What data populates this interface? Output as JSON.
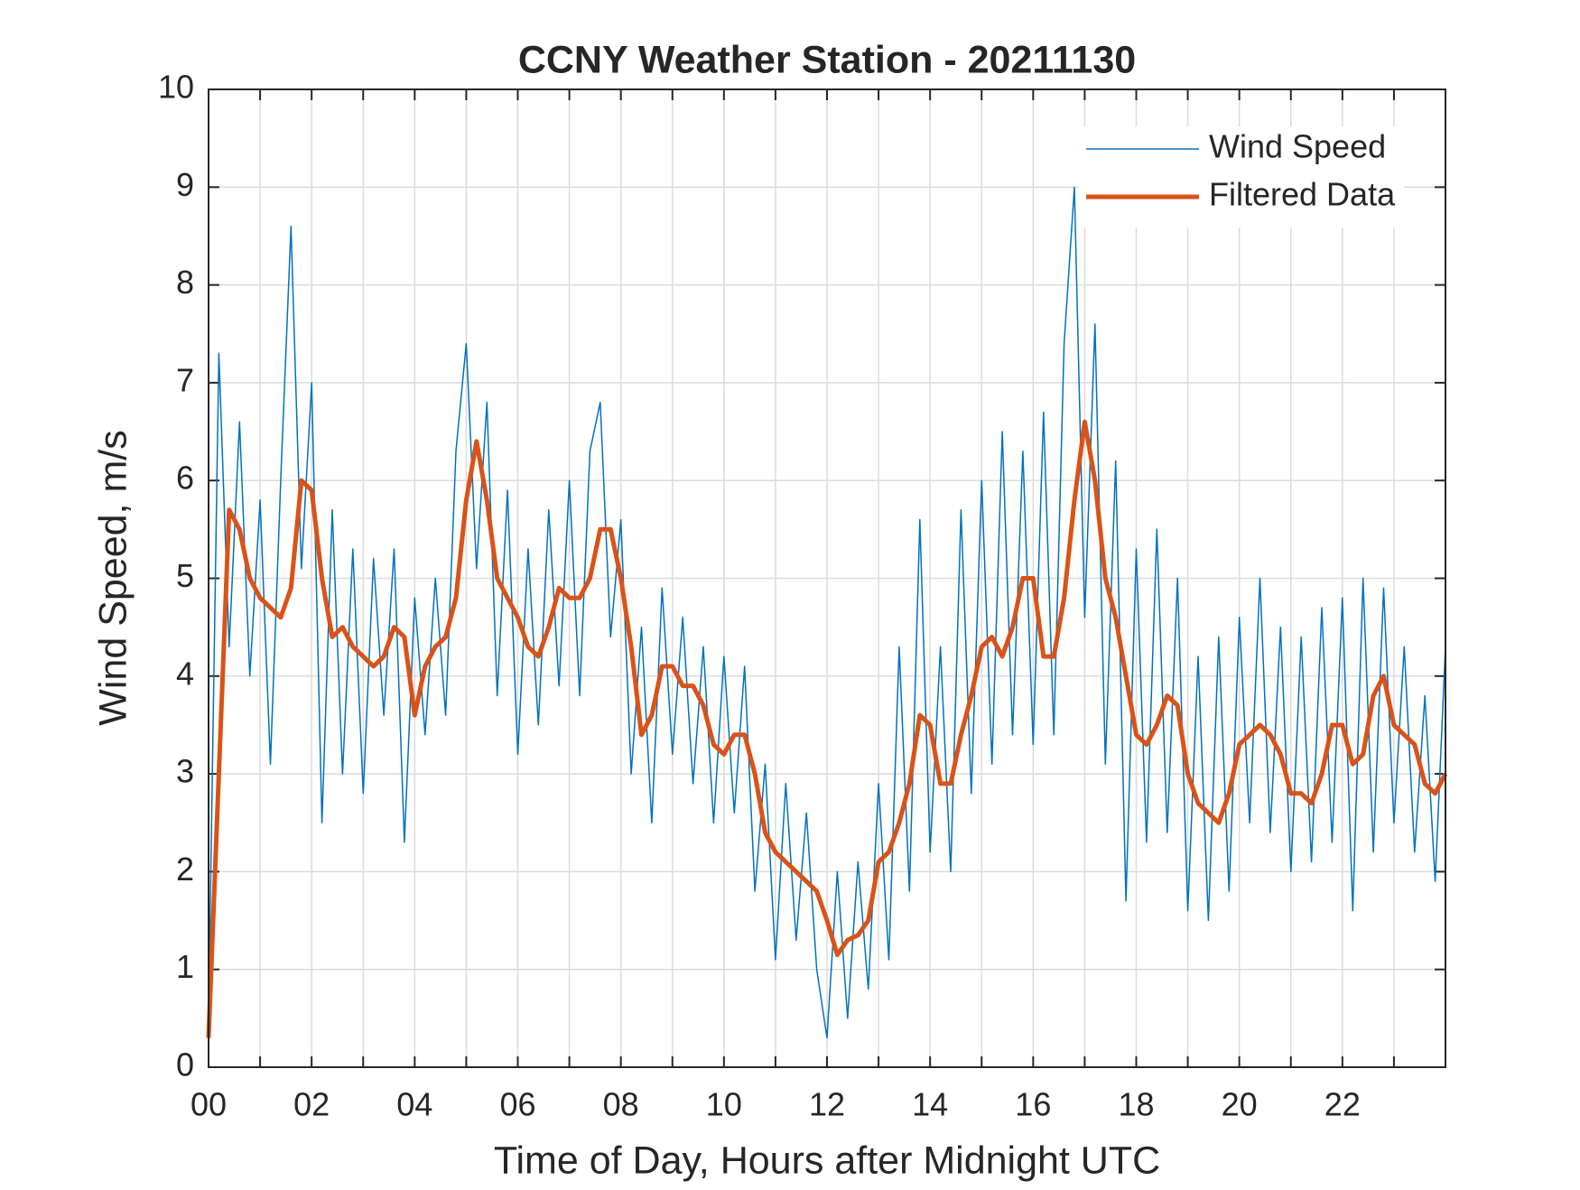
{
  "chart_data": {
    "type": "line",
    "title": "CCNY Weather Station - 20211130",
    "x_label": "Time of Day, Hours after Midnight UTC",
    "y_label": "Wind Speed, m/s",
    "x": [
      0,
      0.2,
      0.4,
      0.6,
      0.8,
      1,
      1.2,
      1.4,
      1.6,
      1.8,
      2,
      2.2,
      2.4,
      2.6,
      2.8,
      3,
      3.2,
      3.4,
      3.6,
      3.8,
      4,
      4.2,
      4.4,
      4.6,
      4.8,
      5,
      5.2,
      5.4,
      5.6,
      5.8,
      6,
      6.2,
      6.4,
      6.6,
      6.8,
      7,
      7.2,
      7.4,
      7.6,
      7.8,
      8,
      8.2,
      8.4,
      8.6,
      8.8,
      9,
      9.2,
      9.4,
      9.6,
      9.8,
      10,
      10.2,
      10.4,
      10.6,
      10.8,
      11,
      11.2,
      11.4,
      11.6,
      11.8,
      12,
      12.2,
      12.4,
      12.6,
      12.8,
      13,
      13.2,
      13.4,
      13.6,
      13.8,
      14,
      14.2,
      14.4,
      14.6,
      14.8,
      15,
      15.2,
      15.4,
      15.6,
      15.8,
      16,
      16.2,
      16.4,
      16.6,
      16.8,
      17,
      17.2,
      17.4,
      17.6,
      17.8,
      18,
      18.2,
      18.4,
      18.6,
      18.8,
      19,
      19.2,
      19.4,
      19.6,
      19.8,
      20,
      20.2,
      20.4,
      20.6,
      20.8,
      21,
      21.2,
      21.4,
      21.6,
      21.8,
      22,
      22.2,
      22.4,
      22.6,
      22.8,
      23,
      23.2,
      23.4,
      23.6,
      23.8,
      24
    ],
    "series": [
      {
        "name": "Wind Speed",
        "color": "#0072bd",
        "width": 1.5,
        "values": [
          0.5,
          7.3,
          4.3,
          6.6,
          4.0,
          5.8,
          3.1,
          6.0,
          8.6,
          5.1,
          7.0,
          2.5,
          5.7,
          3.0,
          5.3,
          2.8,
          5.2,
          3.6,
          5.3,
          2.3,
          4.8,
          3.4,
          5.0,
          3.6,
          6.3,
          7.4,
          5.1,
          6.8,
          3.8,
          5.9,
          3.2,
          5.3,
          3.5,
          5.7,
          3.9,
          6.0,
          3.8,
          6.3,
          6.8,
          4.4,
          5.6,
          3.0,
          4.5,
          2.5,
          4.9,
          3.2,
          4.6,
          2.9,
          4.3,
          2.5,
          4.2,
          2.6,
          4.1,
          1.8,
          3.1,
          1.1,
          2.9,
          1.3,
          2.6,
          1.0,
          0.3,
          2.0,
          0.5,
          2.1,
          0.8,
          2.9,
          1.1,
          4.3,
          1.8,
          5.6,
          2.2,
          4.3,
          2.0,
          5.7,
          2.8,
          6.0,
          3.1,
          6.5,
          3.4,
          6.3,
          3.3,
          6.7,
          3.4,
          7.4,
          9.0,
          4.6,
          7.6,
          3.1,
          6.2,
          1.7,
          5.3,
          2.3,
          5.5,
          2.4,
          5.0,
          1.6,
          4.2,
          1.5,
          4.4,
          1.8,
          4.6,
          2.5,
          5.0,
          2.4,
          4.5,
          2.0,
          4.4,
          2.1,
          4.7,
          2.3,
          4.8,
          1.6,
          5.0,
          2.2,
          4.9,
          2.5,
          4.3,
          2.2,
          3.8,
          1.9,
          4.3
        ]
      },
      {
        "name": "Filtered Data",
        "color": "#d95319",
        "width": 5,
        "values": [
          0.3,
          3.0,
          5.7,
          5.5,
          5.0,
          4.8,
          4.7,
          4.6,
          4.9,
          6.0,
          5.9,
          5.0,
          4.4,
          4.5,
          4.3,
          4.2,
          4.1,
          4.2,
          4.5,
          4.4,
          3.6,
          4.1,
          4.3,
          4.4,
          4.8,
          5.8,
          6.4,
          5.8,
          5.0,
          4.8,
          4.6,
          4.3,
          4.2,
          4.5,
          4.9,
          4.8,
          4.8,
          5.0,
          5.5,
          5.5,
          5.0,
          4.3,
          3.4,
          3.6,
          4.1,
          4.1,
          3.9,
          3.9,
          3.7,
          3.3,
          3.2,
          3.4,
          3.4,
          3.0,
          2.4,
          2.2,
          2.1,
          2.0,
          1.9,
          1.8,
          1.5,
          1.15,
          1.3,
          1.35,
          1.5,
          2.1,
          2.2,
          2.5,
          2.9,
          3.6,
          3.5,
          2.9,
          2.9,
          3.4,
          3.8,
          4.3,
          4.4,
          4.2,
          4.5,
          5.0,
          5.0,
          4.2,
          4.2,
          4.8,
          5.8,
          6.6,
          6.0,
          5.0,
          4.6,
          4.0,
          3.4,
          3.3,
          3.5,
          3.8,
          3.7,
          3.0,
          2.7,
          2.6,
          2.5,
          2.8,
          3.3,
          3.4,
          3.5,
          3.4,
          3.2,
          2.8,
          2.8,
          2.7,
          3.0,
          3.5,
          3.5,
          3.1,
          3.2,
          3.8,
          4.0,
          3.5,
          3.4,
          3.3,
          2.9,
          2.8,
          3.0
        ]
      }
    ],
    "xlim": [
      0,
      24
    ],
    "xticks": [
      {
        "value": 0,
        "label": "00"
      },
      {
        "value": 2,
        "label": "02"
      },
      {
        "value": 4,
        "label": "04"
      },
      {
        "value": 6,
        "label": "06"
      },
      {
        "value": 8,
        "label": "08"
      },
      {
        "value": 10,
        "label": "10"
      },
      {
        "value": 12,
        "label": "12"
      },
      {
        "value": 14,
        "label": "14"
      },
      {
        "value": 16,
        "label": "16"
      },
      {
        "value": 18,
        "label": "18"
      },
      {
        "value": 20,
        "label": "20"
      },
      {
        "value": 22,
        "label": "22"
      }
    ],
    "xminorticks": [
      1,
      3,
      5,
      7,
      9,
      11,
      13,
      15,
      17,
      19,
      21,
      23
    ],
    "ylim": [
      0,
      10
    ],
    "yticks": [
      0,
      1,
      2,
      3,
      4,
      5,
      6,
      7,
      8,
      9,
      10
    ],
    "grid": true,
    "legend": "upper-right"
  }
}
